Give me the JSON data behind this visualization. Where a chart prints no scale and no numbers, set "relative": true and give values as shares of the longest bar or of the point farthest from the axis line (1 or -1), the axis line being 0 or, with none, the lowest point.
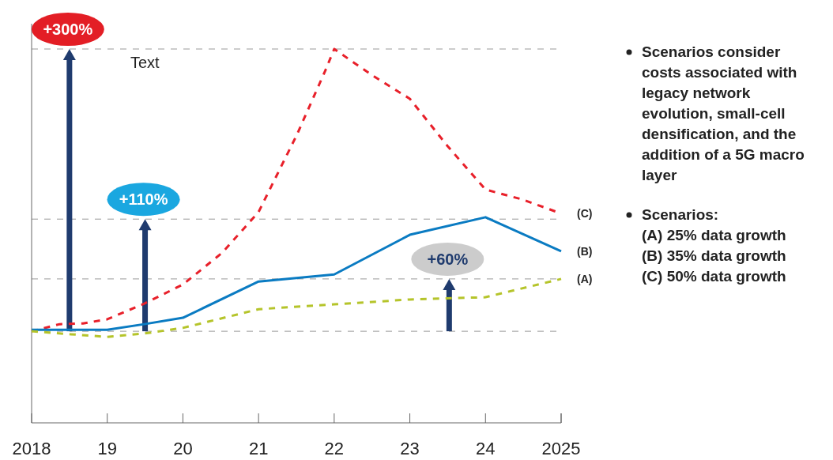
{
  "chart_data": {
    "type": "line",
    "relative": true,
    "xlim": [
      2018,
      2025
    ],
    "xticks": [
      {
        "value": 2018,
        "label": "2018"
      },
      {
        "value": 2019,
        "label": "19"
      },
      {
        "value": 2020,
        "label": "20"
      },
      {
        "value": 2021,
        "label": "21"
      },
      {
        "value": 2022,
        "label": "22"
      },
      {
        "value": 2023,
        "label": "23"
      },
      {
        "value": 2024,
        "label": "24"
      },
      {
        "value": 2025,
        "label": "2025"
      }
    ],
    "series": [
      {
        "name": "(C)",
        "color": "#e8202a",
        "line_style": "dashed",
        "x": [
          2018,
          2018.37,
          2018.68,
          2019,
          2019.49,
          2020,
          2020.52,
          2021,
          2021.51,
          2021.88,
          2022,
          2022.5,
          2023,
          2023.5,
          2024,
          2024.48,
          2025
        ],
        "values": [
          0.245,
          0.264,
          0.266,
          0.277,
          0.319,
          0.37,
          0.455,
          0.564,
          0.772,
          0.941,
          1.0,
          0.93,
          0.867,
          0.74,
          0.624,
          0.598,
          0.56
        ]
      },
      {
        "name": "(B)",
        "color": "#0a7bc2",
        "line_style": "solid",
        "x": [
          2018,
          2019,
          2019.49,
          2020,
          2021,
          2022,
          2023,
          2024,
          2025
        ],
        "values": [
          0.249,
          0.249,
          0.264,
          0.281,
          0.378,
          0.397,
          0.503,
          0.55,
          0.459
        ]
      },
      {
        "name": "(A)",
        "color": "#b5c42a",
        "line_style": "dashed",
        "x": [
          2018,
          2018.52,
          2019,
          2019.49,
          2020,
          2021,
          2022,
          2023,
          2024,
          2025
        ],
        "values": [
          0.245,
          0.237,
          0.23,
          0.239,
          0.254,
          0.304,
          0.317,
          0.33,
          0.336,
          0.385
        ]
      }
    ],
    "ref_lines": [
      {
        "axis": "y",
        "value": 0.245,
        "color": "#999999",
        "line_style": "dashed"
      },
      {
        "axis": "y",
        "value": 1.0,
        "color": "#999999",
        "line_style": "dashed"
      },
      {
        "axis": "y",
        "value": 0.545,
        "color": "#999999",
        "line_style": "dashed"
      },
      {
        "axis": "y",
        "value": 0.385,
        "color": "#999999",
        "line_style": "dashed"
      }
    ],
    "annotations": [
      {
        "text": "+300%",
        "x": 2018.5,
        "y": 1.0
      },
      {
        "text": "+110%",
        "x": 2019.5,
        "y": 0.545
      },
      {
        "text": "+60%",
        "x": 2023.52,
        "y": 0.385
      },
      "Text",
      "Scenarios consider costs associated with legacy network evolution, small-cell densification, and the addition of a 5G macro layer",
      "Scenarios:",
      "(A) 25% data growth",
      "(B) 35% data growth",
      "(C) 50% data growth"
    ],
    "tick_labels": "x"
  }
}
